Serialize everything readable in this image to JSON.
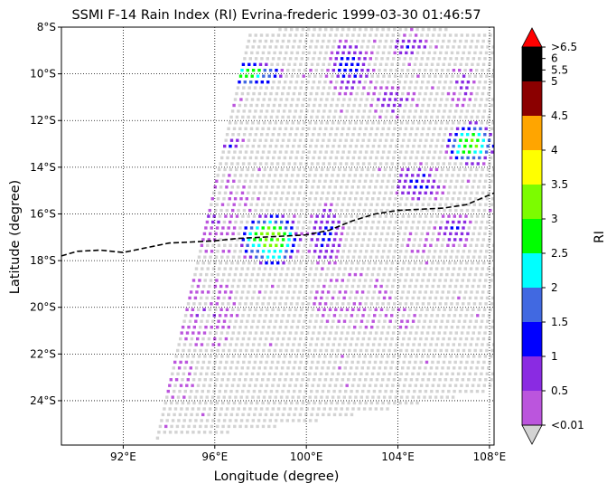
{
  "chart_data": {
    "type": "heatmap",
    "title": "SSMI F-14 Rain Index (RI) Evrina-frederic 1999-03-30 01:46:57",
    "xlabel": "Longitude (degree)",
    "ylabel": "Latitude (degree)",
    "xlim": [
      89.3,
      108.2
    ],
    "ylim": [
      -25.9,
      -8.0
    ],
    "x_ticks": [
      {
        "value": 92,
        "label": "92°E"
      },
      {
        "value": 96,
        "label": "96°E"
      },
      {
        "value": 100,
        "label": "100°E"
      },
      {
        "value": 104,
        "label": "104°E"
      },
      {
        "value": 108,
        "label": "108°E"
      }
    ],
    "y_ticks": [
      {
        "value": -8,
        "label": "8°S"
      },
      {
        "value": -10,
        "label": "10°S"
      },
      {
        "value": -12,
        "label": "12°S"
      },
      {
        "value": -14,
        "label": "14°S"
      },
      {
        "value": -16,
        "label": "16°S"
      },
      {
        "value": -18,
        "label": "18°S"
      },
      {
        "value": -20,
        "label": "20°S"
      },
      {
        "value": -22,
        "label": "22°S"
      },
      {
        "value": -24,
        "label": "24°S"
      }
    ],
    "grid": true,
    "colorbar": {
      "label": "RI",
      "bounds": [
        0.01,
        0.5,
        1,
        1.5,
        2,
        2.5,
        3,
        3.5,
        4,
        4.5,
        5,
        6.5
      ],
      "colors": [
        "#bb55dd",
        "#8a2be2",
        "#0000ff",
        "#4169e1",
        "#00ffff",
        "#00ff00",
        "#7cfc00",
        "#ffff00",
        "#ffa500",
        "#8b0000",
        "#000000"
      ],
      "under_color": "#d3d3d3",
      "over_color": "#ff0000",
      "tick_labels": [
        "<0.01",
        "0.5",
        "1",
        "1.5",
        "2",
        "2.5",
        "3",
        "3.5",
        "4",
        "4.5",
        "5",
        "5.5",
        "6",
        ">6.5"
      ],
      "tick_values": [
        0.01,
        0.5,
        1,
        1.5,
        2,
        2.5,
        3,
        3.5,
        4,
        4.5,
        5,
        5.5,
        6,
        6.5
      ]
    },
    "swath": {
      "lat_top": -8.1,
      "lat_bottom": -25.6,
      "lon_left_at_top": 97.6,
      "lon_left_at_bottom": 93.5,
      "lon_right": 108.2,
      "grid_step_deg": 0.25,
      "cell_color": "#d3d3d3"
    },
    "storm_track": {
      "style": "dashed",
      "color": "#000000",
      "points": [
        [
          89.3,
          -17.8
        ],
        [
          90.0,
          -17.6
        ],
        [
          91.0,
          -17.55
        ],
        [
          92.0,
          -17.65
        ],
        [
          93.0,
          -17.45
        ],
        [
          94.0,
          -17.25
        ],
        [
          95.0,
          -17.2
        ],
        [
          96.0,
          -17.15
        ],
        [
          97.0,
          -17.05
        ],
        [
          98.0,
          -17.0
        ],
        [
          99.0,
          -16.95
        ],
        [
          100.0,
          -16.9
        ],
        [
          101.0,
          -16.7
        ],
        [
          102.0,
          -16.3
        ],
        [
          103.0,
          -16.0
        ],
        [
          104.0,
          -15.85
        ],
        [
          105.0,
          -15.8
        ],
        [
          106.0,
          -15.75
        ],
        [
          107.0,
          -15.6
        ],
        [
          108.2,
          -15.1
        ]
      ]
    },
    "rain_features": [
      {
        "lon": 98.4,
        "lat": -17.1,
        "rx": 1.45,
        "ry": 1.25,
        "peak": 3.2
      },
      {
        "lon": 100.8,
        "lat": -16.9,
        "rx": 0.9,
        "ry": 1.5,
        "peak": 1.2
      },
      {
        "lon": 97.6,
        "lat": -10.0,
        "rx": 1.5,
        "ry": 0.55,
        "peak": 2.7
      },
      {
        "lon": 107.2,
        "lat": -13.0,
        "rx": 1.2,
        "ry": 1.0,
        "peak": 3.0
      },
      {
        "lon": 101.9,
        "lat": -9.7,
        "rx": 1.1,
        "ry": 1.3,
        "peak": 1.2
      },
      {
        "lon": 103.7,
        "lat": -11.2,
        "rx": 1.2,
        "ry": 0.8,
        "peak": 0.8
      },
      {
        "lon": 104.9,
        "lat": -14.7,
        "rx": 1.2,
        "ry": 0.9,
        "peak": 1.1
      },
      {
        "lon": 106.5,
        "lat": -16.7,
        "rx": 0.9,
        "ry": 0.8,
        "peak": 1.0
      },
      {
        "lon": 96.8,
        "lat": -13.0,
        "rx": 0.6,
        "ry": 0.35,
        "peak": 1.0
      },
      {
        "lon": 96.2,
        "lat": -16.0,
        "rx": 1.4,
        "ry": 1.8,
        "peak": 0.5
      },
      {
        "lon": 95.6,
        "lat": -20.2,
        "rx": 1.4,
        "ry": 1.6,
        "peak": 0.5
      },
      {
        "lon": 102.0,
        "lat": -19.8,
        "rx": 1.7,
        "ry": 1.3,
        "peak": 0.4
      },
      {
        "lon": 104.5,
        "lat": -8.8,
        "rx": 1.0,
        "ry": 0.5,
        "peak": 1.0
      },
      {
        "lon": 106.8,
        "lat": -10.5,
        "rx": 0.7,
        "ry": 0.9,
        "peak": 0.7
      },
      {
        "lon": 94.4,
        "lat": -23.0,
        "rx": 0.8,
        "ry": 1.0,
        "peak": 0.4
      },
      {
        "lon": 104.2,
        "lat": -20.5,
        "rx": 0.6,
        "ry": 0.6,
        "peak": 0.3
      },
      {
        "lon": 105.0,
        "lat": -17.2,
        "rx": 0.7,
        "ry": 0.5,
        "peak": 0.4
      }
    ]
  }
}
